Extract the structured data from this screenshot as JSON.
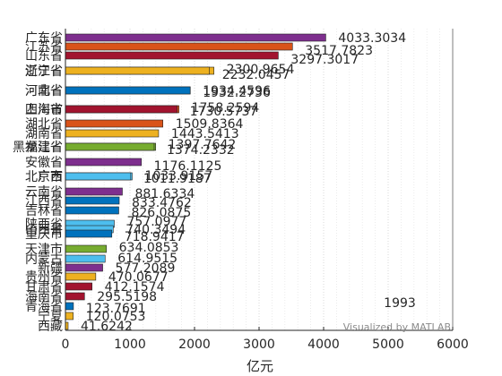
{
  "chart_data": {
    "type": "bar",
    "orientation": "horizontal",
    "xlabel": "亿元",
    "xlim": [
      0,
      6000
    ],
    "xticks": [
      0,
      1000,
      2000,
      3000,
      4000,
      5000,
      6000
    ],
    "grid": "x-dotted",
    "year_label": "1993",
    "credit": "Visualized by MATLAB",
    "bars": [
      {
        "category": "广东省",
        "value": 4033.3034,
        "label": "4033.3034",
        "color": "#7E2F8E"
      },
      {
        "category": "江苏省",
        "value": 3517.7823,
        "label": "3517.7823",
        "color": "#D95319"
      },
      {
        "category": "山东省",
        "value": 3297.3017,
        "label": "3297.3017",
        "color": "#A2142F"
      },
      {
        "category": "浙江省",
        "value": 2300.9654,
        "label": "2300.9654",
        "color": "#EDB120"
      },
      {
        "category": "辽宁省",
        "value": 2232.0457,
        "label": "2232.0457",
        "color": "#EDB120"
      },
      {
        "category": "河南省",
        "value": 1934.4596,
        "label": "1934.4596",
        "color": "#0072BD"
      },
      {
        "category": "河北省",
        "value": 1932.2736,
        "label": "1932.2736",
        "color": "#0072BD"
      },
      {
        "category": "四川省",
        "value": 1758.2594,
        "label": "1758.2594",
        "color": "#D95319"
      },
      {
        "category": "上海市",
        "value": 1730.5737,
        "label": "1730.5737",
        "color": "#A2142F"
      },
      {
        "category": "湖北省",
        "value": 1509.8364,
        "label": "1509.8364",
        "color": "#D95319"
      },
      {
        "category": "湖南省",
        "value": 1443.5413,
        "label": "1443.5413",
        "color": "#EDB120"
      },
      {
        "category": "黑龙江省",
        "value": 1397.7642,
        "label": "1397.7642",
        "color": "#77AC30"
      },
      {
        "category": "福建省",
        "value": 1374.2332,
        "label": "1374.2332",
        "color": "#77AC30"
      },
      {
        "category": "安徽省",
        "value": 1176.1125,
        "label": "1176.1125",
        "color": "#7E2F8E"
      },
      {
        "category": "北京市",
        "value": 1033.9157,
        "label": "1033.9157",
        "color": "#4DBEEE"
      },
      {
        "category": "广西",
        "value": 1011.9187,
        "label": "1011.9187",
        "color": "#4DBEEE"
      },
      {
        "category": "云南省",
        "value": 881.6334,
        "label": "881.6334",
        "color": "#7E2F8E"
      },
      {
        "category": "江西省",
        "value": 833.4762,
        "label": "833.4762",
        "color": "#0072BD"
      },
      {
        "category": "吉林省",
        "value": 826.0875,
        "label": "826.0875",
        "color": "#0072BD"
      },
      {
        "category": "陕西省",
        "value": 757.0977,
        "label": "757.0977",
        "color": "#4DBEEE"
      },
      {
        "category": "山西省",
        "value": 740.3494,
        "label": "740.3494",
        "color": "#4DBEEE"
      },
      {
        "category": "重庆市",
        "value": 718.9417,
        "label": "718.9417",
        "color": "#0072BD"
      },
      {
        "category": "天津市",
        "value": 634.0853,
        "label": "634.0853",
        "color": "#77AC30"
      },
      {
        "category": "内蒙古",
        "value": 614.9515,
        "label": "614.9515",
        "color": "#4DBEEE"
      },
      {
        "category": "新疆",
        "value": 577.2089,
        "label": "577.2089",
        "color": "#7E2F8E"
      },
      {
        "category": "贵州省",
        "value": 470.0677,
        "label": "470.0677",
        "color": "#EDB120"
      },
      {
        "category": "甘肃省",
        "value": 412.1574,
        "label": "412.1574",
        "color": "#A2142F"
      },
      {
        "category": "海南省",
        "value": 295.5198,
        "label": "295.5198",
        "color": "#A2142F"
      },
      {
        "category": "青海省",
        "value": 123.7691,
        "label": "123.7691",
        "color": "#0072BD"
      },
      {
        "category": "宁夏",
        "value": 120.0753,
        "label": "120.0753",
        "color": "#EDB120"
      },
      {
        "category": "西藏",
        "value": 41.6242,
        "label": "41.6242",
        "color": "#EDB120"
      }
    ]
  }
}
